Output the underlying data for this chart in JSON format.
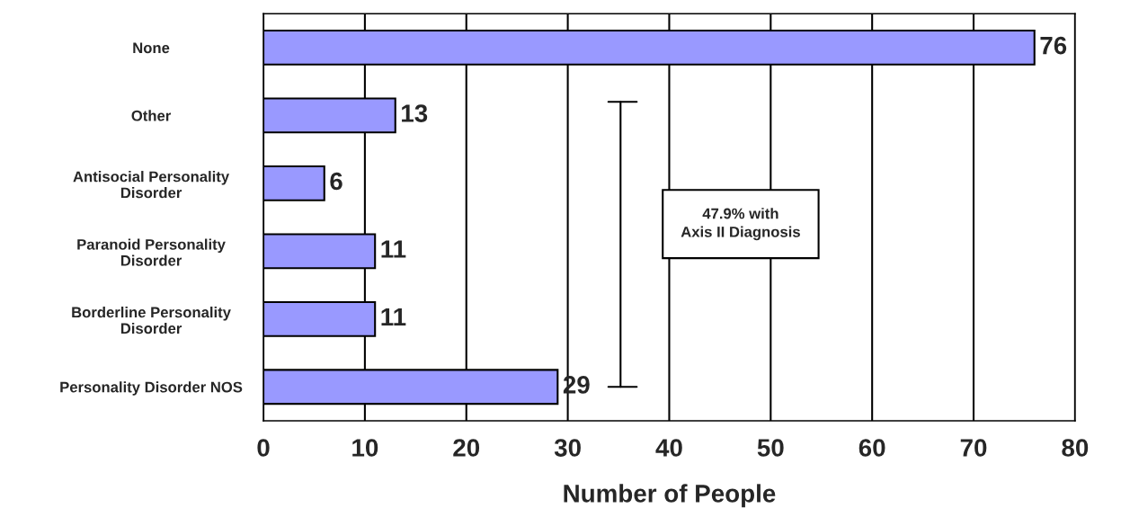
{
  "chart_data": {
    "type": "bar",
    "orientation": "horizontal",
    "xlabel": "Number of People",
    "categories": [
      "None",
      "Other",
      "Antisocial Personality\nDisorder",
      "Paranoid Personality\nDisorder",
      "Borderline Personality\nDisorder",
      "Personality Disorder NOS"
    ],
    "values": [
      76,
      13,
      6,
      11,
      11,
      29
    ],
    "color": "#9999ff",
    "xlim": [
      0,
      80
    ],
    "xticks": [
      0,
      10,
      20,
      30,
      40,
      50,
      60,
      70,
      80
    ],
    "grid": "x",
    "data_labels": true,
    "annotations": [
      "47.9% with\nAxis II Diagnosis"
    ]
  }
}
